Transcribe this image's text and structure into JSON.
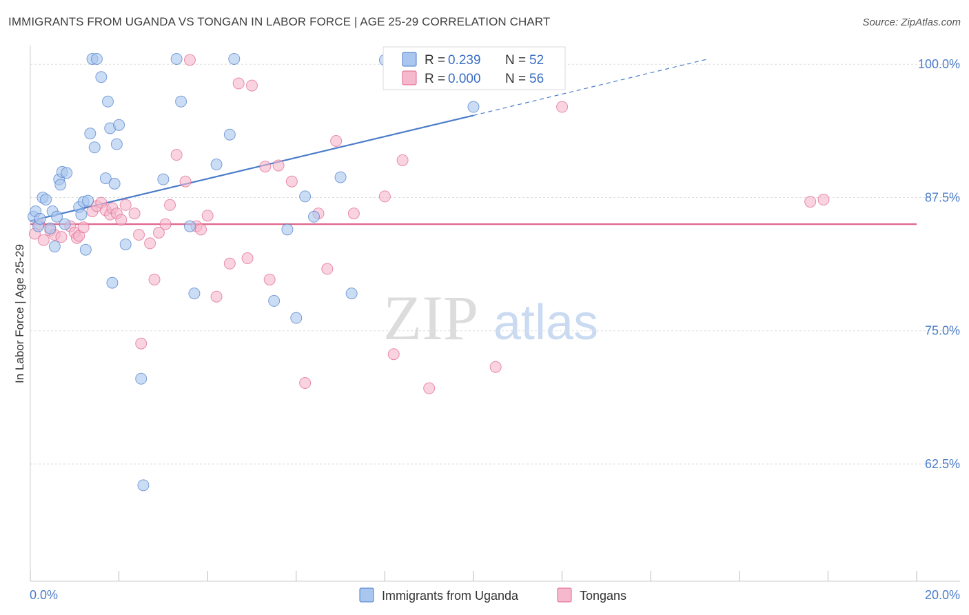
{
  "title": "IMMIGRANTS FROM UGANDA VS TONGAN IN LABOR FORCE | AGE 25-29 CORRELATION CHART",
  "source": "Source: ZipAtlas.com",
  "watermark": {
    "zip": "ZIP",
    "atlas": "atlas"
  },
  "chart_data": {
    "type": "scatter",
    "title": "IMMIGRANTS FROM UGANDA VS TONGAN IN LABOR FORCE | AGE 25-29 CORRELATION CHART",
    "xlabel": "",
    "ylabel": "In Labor Force | Age 25-29",
    "xlim": [
      0,
      20
    ],
    "ylim": [
      51.5,
      101.5
    ],
    "x_tick_labels": {
      "min": "0.0%",
      "max": "20.0%"
    },
    "y_ticks": [
      {
        "value": 100.0,
        "label": "100.0%"
      },
      {
        "value": 87.5,
        "label": "87.5%"
      },
      {
        "value": 75.0,
        "label": "75.0%"
      },
      {
        "value": 62.5,
        "label": "62.5%"
      }
    ],
    "grid": true,
    "legend": {
      "position": "top-center",
      "rows": [
        {
          "r_label": "R =",
          "r_value": "0.239",
          "n_label": "N =",
          "n_value": "52"
        },
        {
          "r_label": "R =",
          "r_value": "0.000",
          "n_label": "N =",
          "n_value": "56"
        }
      ]
    },
    "series": [
      {
        "name": "Immigrants from Uganda",
        "color": "#4a7cc9",
        "fill": "#a8c6ee",
        "trend": {
          "x0": 0.0,
          "y0": 85.3,
          "x1": 10.0,
          "y1": 95.2,
          "dash_to_x": 15.3,
          "dash_to_y": 100.5
        },
        "points": [
          [
            0.07,
            85.7
          ],
          [
            0.12,
            86.2
          ],
          [
            0.18,
            84.8
          ],
          [
            0.22,
            85.5
          ],
          [
            0.28,
            87.5
          ],
          [
            0.35,
            87.3
          ],
          [
            0.45,
            84.6
          ],
          [
            0.5,
            86.2
          ],
          [
            0.55,
            82.9
          ],
          [
            0.6,
            85.7
          ],
          [
            0.65,
            89.2
          ],
          [
            0.68,
            88.7
          ],
          [
            0.72,
            89.9
          ],
          [
            0.78,
            85.0
          ],
          [
            0.82,
            89.8
          ],
          [
            1.1,
            86.6
          ],
          [
            1.15,
            85.9
          ],
          [
            1.2,
            87.1
          ],
          [
            1.25,
            82.6
          ],
          [
            1.3,
            87.2
          ],
          [
            1.35,
            93.5
          ],
          [
            1.4,
            100.5
          ],
          [
            1.45,
            92.2
          ],
          [
            1.5,
            100.5
          ],
          [
            1.6,
            98.8
          ],
          [
            1.7,
            89.3
          ],
          [
            1.75,
            96.5
          ],
          [
            1.8,
            94.0
          ],
          [
            1.85,
            79.5
          ],
          [
            1.9,
            88.8
          ],
          [
            1.95,
            92.5
          ],
          [
            2.0,
            94.3
          ],
          [
            2.15,
            83.1
          ],
          [
            2.5,
            70.5
          ],
          [
            2.55,
            60.5
          ],
          [
            3.0,
            89.2
          ],
          [
            3.3,
            100.5
          ],
          [
            3.4,
            96.5
          ],
          [
            3.6,
            84.8
          ],
          [
            3.7,
            78.5
          ],
          [
            4.2,
            90.6
          ],
          [
            4.5,
            93.4
          ],
          [
            4.6,
            100.5
          ],
          [
            5.5,
            77.8
          ],
          [
            5.8,
            84.5
          ],
          [
            6.0,
            76.2
          ],
          [
            6.2,
            87.6
          ],
          [
            6.4,
            85.7
          ],
          [
            7.0,
            89.4
          ],
          [
            7.25,
            78.5
          ],
          [
            8.0,
            100.4
          ],
          [
            10.0,
            96.0
          ]
        ]
      },
      {
        "name": "Tongans",
        "color": "#e0648c",
        "fill": "#f5b8cc",
        "trend": {
          "x0": 0.0,
          "y0": 85.0,
          "x1": 20.0,
          "y1": 85.0
        },
        "points": [
          [
            0.1,
            84.1
          ],
          [
            0.2,
            85.0
          ],
          [
            0.3,
            83.5
          ],
          [
            0.45,
            84.4
          ],
          [
            0.55,
            84.0
          ],
          [
            0.7,
            83.8
          ],
          [
            0.9,
            84.8
          ],
          [
            1.0,
            84.2
          ],
          [
            1.05,
            83.7
          ],
          [
            1.1,
            83.9
          ],
          [
            1.2,
            84.7
          ],
          [
            1.4,
            86.2
          ],
          [
            1.5,
            86.7
          ],
          [
            1.6,
            87.0
          ],
          [
            1.7,
            86.3
          ],
          [
            1.8,
            85.9
          ],
          [
            1.85,
            86.5
          ],
          [
            1.95,
            86.0
          ],
          [
            2.05,
            85.4
          ],
          [
            2.15,
            86.8
          ],
          [
            2.35,
            86.0
          ],
          [
            2.45,
            84.0
          ],
          [
            2.5,
            73.8
          ],
          [
            2.7,
            83.2
          ],
          [
            2.8,
            79.8
          ],
          [
            2.9,
            84.2
          ],
          [
            3.05,
            85.0
          ],
          [
            3.15,
            86.8
          ],
          [
            3.3,
            91.5
          ],
          [
            3.5,
            89.0
          ],
          [
            3.6,
            100.4
          ],
          [
            3.75,
            84.8
          ],
          [
            3.85,
            84.5
          ],
          [
            4.0,
            85.8
          ],
          [
            4.2,
            78.2
          ],
          [
            4.5,
            81.3
          ],
          [
            4.7,
            98.2
          ],
          [
            4.9,
            81.8
          ],
          [
            5.0,
            98.0
          ],
          [
            5.3,
            90.4
          ],
          [
            5.4,
            79.8
          ],
          [
            5.6,
            90.5
          ],
          [
            5.9,
            89.0
          ],
          [
            6.2,
            70.1
          ],
          [
            6.5,
            86.0
          ],
          [
            6.7,
            80.8
          ],
          [
            6.9,
            92.8
          ],
          [
            7.3,
            86.0
          ],
          [
            8.0,
            87.6
          ],
          [
            8.2,
            72.8
          ],
          [
            8.4,
            91.0
          ],
          [
            9.0,
            69.6
          ],
          [
            10.5,
            71.6
          ],
          [
            12.0,
            96.0
          ],
          [
            17.6,
            87.1
          ],
          [
            17.9,
            87.3
          ]
        ]
      }
    ]
  }
}
